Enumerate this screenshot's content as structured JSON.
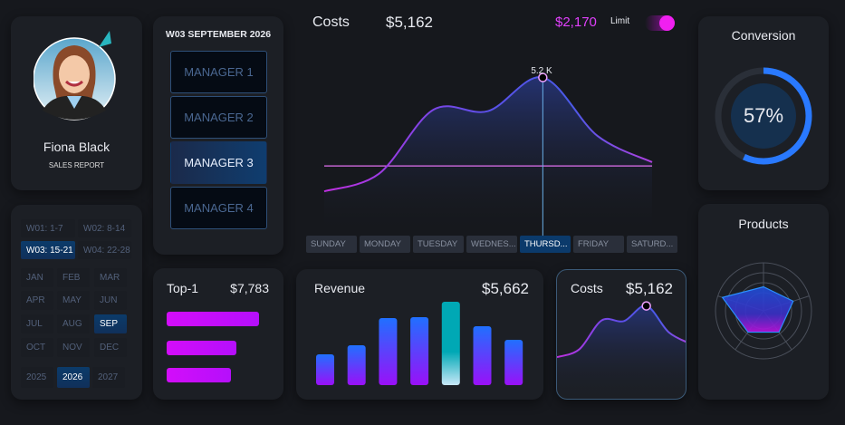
{
  "profile": {
    "name": "Fiona Black",
    "subtitle": "SALES REPORT"
  },
  "managers": {
    "period": "W03 SEPTEMBER 2026",
    "items": [
      "MANAGER 1",
      "MANAGER 2",
      "MANAGER 3",
      "MANAGER 4"
    ],
    "selected": 2
  },
  "calendar": {
    "weeks": [
      "W01: 1-7",
      "W02: 8-14",
      "W03: 15-21",
      "W04: 22-28"
    ],
    "selected_week": 2,
    "months": [
      "JAN",
      "FEB",
      "MAR",
      "APR",
      "MAY",
      "JUN",
      "JUL",
      "AUG",
      "SEP",
      "OCT",
      "NOV",
      "DEC"
    ],
    "selected_month": 8,
    "years": [
      "2025",
      "2026",
      "2027"
    ],
    "selected_year": 1
  },
  "top1": {
    "label": "Top-1",
    "value": "$7,783",
    "bars_percent": [
      100,
      75,
      70
    ]
  },
  "costs_main": {
    "title": "Costs",
    "value": "$5,162",
    "limit_value": "$2,170",
    "limit_label": "Limit",
    "limit_enabled": true,
    "peak_label": "5.2 K",
    "days": [
      "SUNDAY",
      "MONDAY",
      "TUESDAY",
      "WEDNES...",
      "THURSD...",
      "FRIDAY",
      "SATURD..."
    ],
    "selected_day": 4
  },
  "chart_data": [
    {
      "type": "area",
      "series": [
        {
          "values": [
            1.3,
            1.9,
            4.1,
            4.05,
            5.2,
            3.2,
            2.3
          ]
        }
      ],
      "categories": [
        "SUNDAY",
        "MONDAY",
        "TUESDAY",
        "WEDNESDAY",
        "THURSDAY",
        "FRIDAY",
        "SATURDAY"
      ],
      "limit": 2.17,
      "highlight_index": 4,
      "unit": "K"
    },
    {
      "type": "bar",
      "values": [
        34,
        44,
        74,
        75,
        92,
        65,
        50
      ],
      "highlight_index": 4
    },
    {
      "type": "radar",
      "values": [
        0.5,
        0.65,
        0.55,
        0.55,
        0.9
      ]
    }
  ],
  "revenue": {
    "title": "Revenue",
    "value": "$5,662"
  },
  "costs_mini": {
    "title": "Costs",
    "value": "$5,162"
  },
  "conversion": {
    "title": "Conversion",
    "value": "57%",
    "percent": 57
  },
  "products": {
    "title": "Products"
  },
  "colors": {
    "accent_magenta": "#e040fb",
    "accent_blue": "#2979ff",
    "selected_blue": "#0b3a6b",
    "bar_highlight": "#00a8b5"
  }
}
